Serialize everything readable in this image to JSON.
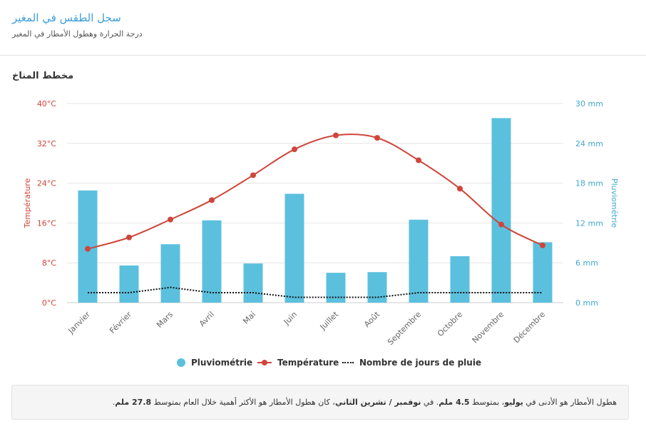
{
  "header": {
    "title": "سجل الطقس في المغير",
    "subtitle": "درجة الحرارة وهطول الأمطار في المغير"
  },
  "section_title": "مخطط المناخ",
  "legend": {
    "rain": "Pluviométrie",
    "temp": "Température",
    "days": "Nombre de jours de pluie"
  },
  "note": {
    "p1": "هطول الأمطار هو الأدنى في ",
    "min_month": "يوليو",
    "p2": "، بمتوسط ",
    "min_value": "4.5 ملم",
    "p3": ". في ",
    "max_month": "نوفمبر / تشرين الثاني",
    "p4": "، كان هطول الأمطار هو الأكثر أهمية خلال العام بمتوسط ",
    "max_value": "27.8 ملم",
    "p5": "."
  },
  "colors": {
    "rain": "#5bc0de",
    "temp": "#d0453a",
    "days": "#111111",
    "rain_axis": "#3fa8d2"
  },
  "chart_data": {
    "type": "bar",
    "categories": [
      "Janvier",
      "Février",
      "Mars",
      "Avril",
      "Mai",
      "Juin",
      "Juillet",
      "Août",
      "Septembre",
      "Octobre",
      "Novembre",
      "Décembre"
    ],
    "y_left": {
      "label": "Température",
      "min": 0,
      "max": 40,
      "ticks": [
        "0°C",
        "8°C",
        "16°C",
        "24°C",
        "32°C",
        "40°C"
      ]
    },
    "y_right": {
      "label": "Pluviométrie",
      "min": 0,
      "max": 30,
      "ticks": [
        "0 mm",
        "6 mm",
        "12 mm",
        "18 mm",
        "24 mm",
        "30 mm"
      ]
    },
    "grid": true,
    "legend_position": "bottom",
    "series": [
      {
        "name": "Pluviométrie",
        "type": "bar",
        "axis": "right",
        "values": [
          16.9,
          5.6,
          8.8,
          12.4,
          5.9,
          16.4,
          4.5,
          4.6,
          12.5,
          7.0,
          27.8,
          9.1
        ]
      },
      {
        "name": "Température",
        "type": "line",
        "axis": "left",
        "values": [
          10.8,
          13.1,
          16.7,
          20.6,
          25.6,
          30.8,
          33.6,
          33.1,
          28.6,
          22.9,
          15.7,
          11.5
        ]
      },
      {
        "name": "Nombre de jours de pluie",
        "type": "line",
        "axis": "right",
        "values": [
          1.5,
          1.5,
          2.3,
          1.5,
          1.5,
          0.8,
          0.8,
          0.8,
          1.5,
          1.5,
          1.5,
          1.5
        ]
      }
    ]
  }
}
